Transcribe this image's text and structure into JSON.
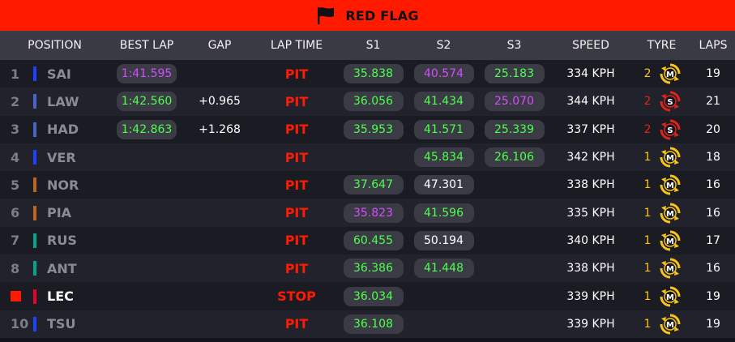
{
  "banner": {
    "title": "RED FLAG",
    "icon": "flag-icon"
  },
  "columns": [
    "POSITION",
    "BEST LAP",
    "GAP",
    "LAP TIME",
    "S1",
    "S2",
    "S3",
    "SPEED",
    "TYRE",
    "LAPS"
  ],
  "colors": {
    "red_flag": "#ff1a00",
    "sector_green": "#4cff4c",
    "sector_purple": "#d44cff",
    "medium_tyre": "#f5c518",
    "soft_tyre": "#e2231a"
  },
  "drivers": [
    {
      "pos": "1",
      "code": "SAI",
      "team_color": "#1e41ff",
      "best_lap": "1:41.595",
      "best_lap_color": "purple",
      "gap": "",
      "lap_time": "PIT",
      "s1": "35.838",
      "s1c": "green",
      "s2": "40.574",
      "s2c": "purple",
      "s3": "25.183",
      "s3c": "green",
      "speed": "334 KPH",
      "tyre_age": "2",
      "tyre": "M",
      "tyre_age_color": "#f5c518",
      "laps": "19"
    },
    {
      "pos": "2",
      "code": "LAW",
      "team_color": "#4a63c8",
      "best_lap": "1:42.560",
      "best_lap_color": "green",
      "gap": "+0.965",
      "lap_time": "PIT",
      "s1": "36.056",
      "s1c": "green",
      "s2": "41.434",
      "s2c": "green",
      "s3": "25.070",
      "s3c": "purple",
      "speed": "344 KPH",
      "tyre_age": "2",
      "tyre": "S",
      "tyre_age_color": "#e2231a",
      "laps": "21"
    },
    {
      "pos": "3",
      "code": "HAD",
      "team_color": "#4a63c8",
      "best_lap": "1:42.863",
      "best_lap_color": "green",
      "gap": "+1.268",
      "lap_time": "PIT",
      "s1": "35.953",
      "s1c": "green",
      "s2": "41.571",
      "s2c": "green",
      "s3": "25.339",
      "s3c": "green",
      "speed": "337 KPH",
      "tyre_age": "2",
      "tyre": "S",
      "tyre_age_color": "#e2231a",
      "laps": "20"
    },
    {
      "pos": "4",
      "code": "VER",
      "team_color": "#1e41ff",
      "best_lap": "",
      "best_lap_color": "green",
      "gap": "",
      "lap_time": "PIT",
      "s1": "",
      "s1c": "green",
      "s2": "45.834",
      "s2c": "green",
      "s3": "26.106",
      "s3c": "green",
      "speed": "342 KPH",
      "tyre_age": "1",
      "tyre": "M",
      "tyre_age_color": "#f5c518",
      "laps": "18"
    },
    {
      "pos": "5",
      "code": "NOR",
      "team_color": "#c0641a",
      "best_lap": "",
      "best_lap_color": "green",
      "gap": "",
      "lap_time": "PIT",
      "s1": "37.647",
      "s1c": "green",
      "s2": "47.301",
      "s2c": "white",
      "s3": "",
      "s3c": "green",
      "speed": "338 KPH",
      "tyre_age": "1",
      "tyre": "M",
      "tyre_age_color": "#f5c518",
      "laps": "16"
    },
    {
      "pos": "6",
      "code": "PIA",
      "team_color": "#c0641a",
      "best_lap": "",
      "best_lap_color": "green",
      "gap": "",
      "lap_time": "PIT",
      "s1": "35.823",
      "s1c": "purple",
      "s2": "41.596",
      "s2c": "green",
      "s3": "",
      "s3c": "green",
      "speed": "335 KPH",
      "tyre_age": "1",
      "tyre": "M",
      "tyre_age_color": "#f5c518",
      "laps": "16"
    },
    {
      "pos": "7",
      "code": "RUS",
      "team_color": "#00a58a",
      "best_lap": "",
      "best_lap_color": "green",
      "gap": "",
      "lap_time": "PIT",
      "s1": "60.455",
      "s1c": "green",
      "s2": "50.194",
      "s2c": "white",
      "s3": "",
      "s3c": "green",
      "speed": "340 KPH",
      "tyre_age": "1",
      "tyre": "M",
      "tyre_age_color": "#f5c518",
      "laps": "17"
    },
    {
      "pos": "8",
      "code": "ANT",
      "team_color": "#00a58a",
      "best_lap": "",
      "best_lap_color": "green",
      "gap": "",
      "lap_time": "PIT",
      "s1": "36.386",
      "s1c": "green",
      "s2": "41.448",
      "s2c": "green",
      "s3": "",
      "s3c": "green",
      "speed": "338 KPH",
      "tyre_age": "1",
      "tyre": "M",
      "tyre_age_color": "#f5c518",
      "laps": "16"
    },
    {
      "pos": "",
      "stopped": true,
      "code": "LEC",
      "team_color": "#e8002d",
      "best_lap": "",
      "best_lap_color": "green",
      "gap": "",
      "lap_time": "STOP",
      "s1": "36.034",
      "s1c": "green",
      "s2": "",
      "s2c": "green",
      "s3": "",
      "s3c": "green",
      "speed": "339 KPH",
      "tyre_age": "1",
      "tyre": "M",
      "tyre_age_color": "#f5c518",
      "laps": "19"
    },
    {
      "pos": "10",
      "code": "TSU",
      "team_color": "#1e41ff",
      "best_lap": "",
      "best_lap_color": "green",
      "gap": "",
      "lap_time": "PIT",
      "s1": "36.108",
      "s1c": "green",
      "s2": "",
      "s2c": "green",
      "s3": "",
      "s3c": "green",
      "speed": "339 KPH",
      "tyre_age": "1",
      "tyre": "M",
      "tyre_age_color": "#f5c518",
      "laps": "19"
    }
  ]
}
